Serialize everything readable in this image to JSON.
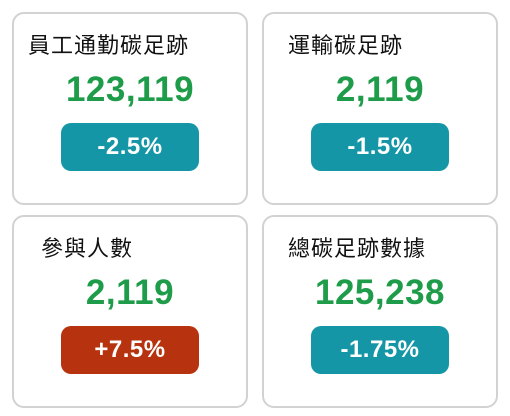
{
  "cards": [
    {
      "title": "員工通勤碳足跡",
      "value": "123,119",
      "change": "-2.5%",
      "trend": "down"
    },
    {
      "title": "運輸碳足跡",
      "value": "2,119",
      "change": "-1.5%",
      "trend": "down"
    },
    {
      "title": "參與人數",
      "value": "2,119",
      "change": "+7.5%",
      "trend": "up"
    },
    {
      "title": "總碳足跡數據",
      "value": "125,238",
      "change": "-1.75%",
      "trend": "down"
    }
  ],
  "colors": {
    "value_green": "#1f9c4a",
    "badge_down": "#1596a6",
    "badge_up": "#b7330f",
    "card_border": "#d2d2d2"
  }
}
